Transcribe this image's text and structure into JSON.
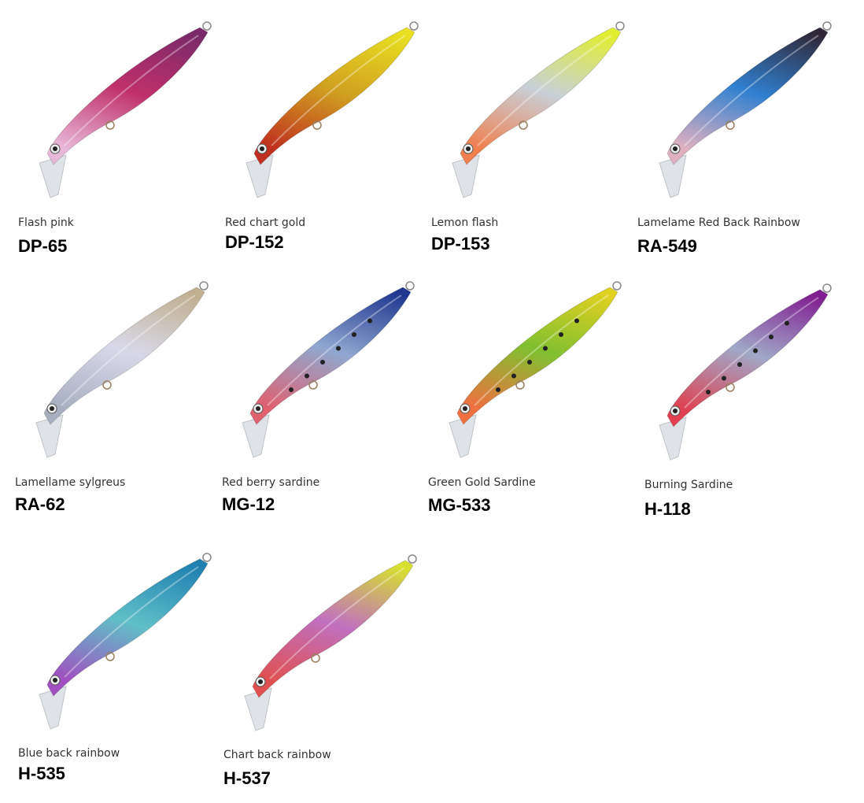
{
  "products": [
    {
      "name": "Flash pink",
      "code": "DP-65",
      "colors": [
        "#7a2a6a",
        "#c0306a",
        "#e8b8d8"
      ],
      "dots": false
    },
    {
      "name": "Red chart gold",
      "code": "DP-152",
      "colors": [
        "#e8e020",
        "#d0a020",
        "#c03020"
      ],
      "dots": false
    },
    {
      "name": "Lemon flash",
      "code": "DP-153",
      "colors": [
        "#e0ee30",
        "#c8d0d8",
        "#f08050"
      ],
      "dots": false
    },
    {
      "name": "Lamelame Red Back Rainbow",
      "code": "RA-549",
      "colors": [
        "#302838",
        "#3080d0",
        "#e0b0c0"
      ],
      "dots": false
    },
    {
      "name": "Lamellame sylgreus",
      "code": "RA-62",
      "colors": [
        "#c0b090",
        "#d8d8e8",
        "#a8b0c0"
      ],
      "dots": false
    },
    {
      "name": "Red berry sardine",
      "code": "MG-12",
      "colors": [
        "#203890",
        "#90a8d0",
        "#e06070"
      ],
      "dots": true
    },
    {
      "name": "Green Gold Sardine",
      "code": "MG-533",
      "colors": [
        "#e0d020",
        "#80c030",
        "#f07040"
      ],
      "dots": true
    },
    {
      "name": "Burning Sardine",
      "code": "H-118",
      "colors": [
        "#802090",
        "#a0a8c8",
        "#e04050"
      ],
      "dots": true
    },
    {
      "name": "Blue back rainbow",
      "code": "H-535",
      "colors": [
        "#2080b0",
        "#60c0c8",
        "#a050c0"
      ],
      "dots": false
    },
    {
      "name": "Chart back rainbow",
      "code": "H-537",
      "colors": [
        "#d8e030",
        "#c070c0",
        "#e05050"
      ],
      "dots": false
    }
  ]
}
